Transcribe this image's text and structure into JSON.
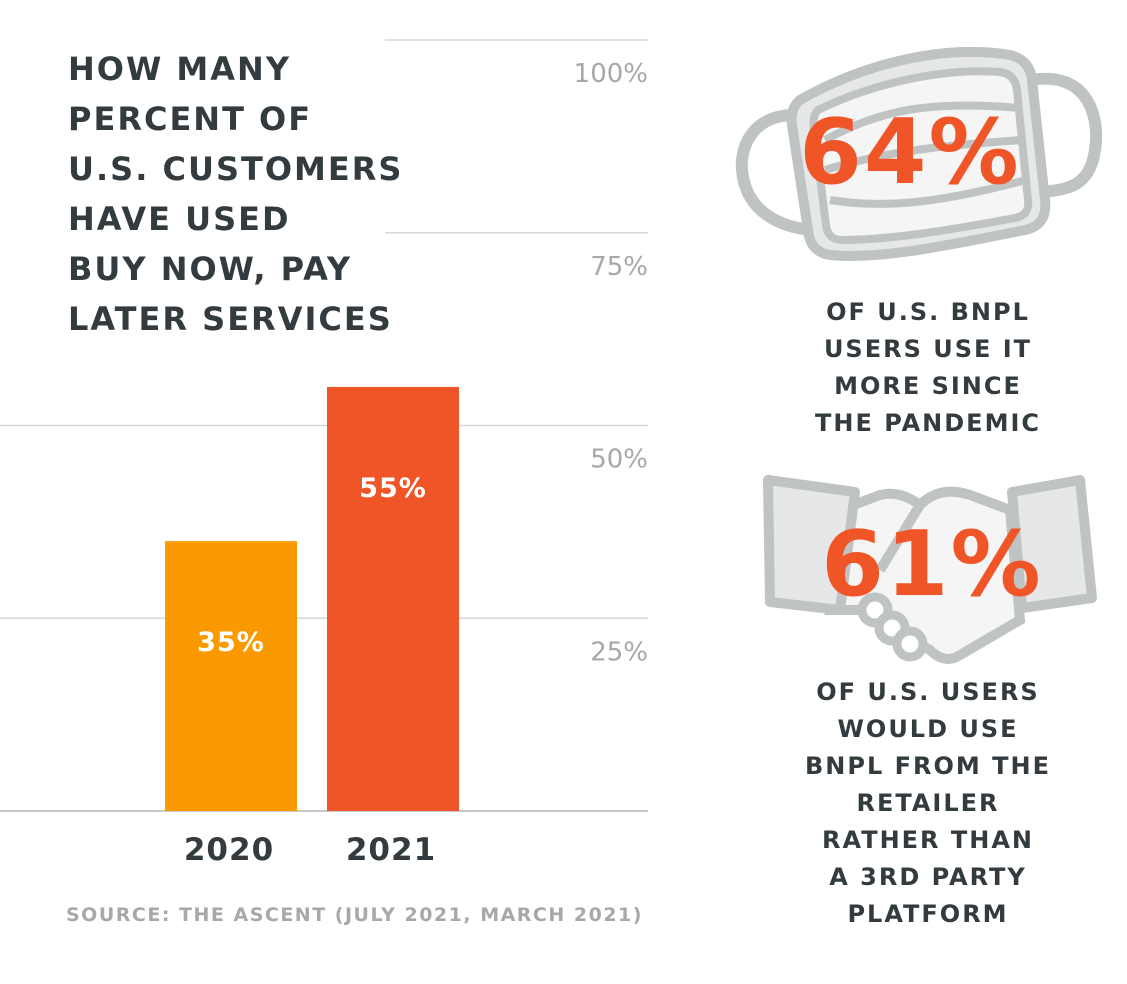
{
  "title_lines": [
    "HOW MANY",
    "PERCENT OF",
    "U.S. CUSTOMERS",
    "HAVE USED",
    "BUY NOW, PAY",
    "LATER SERVICES"
  ],
  "source": "SOURCE: THE ASCENT (JULY 2021, MARCH 2021)",
  "chart_data": {
    "type": "bar",
    "title": "HOW MANY PERCENT OF U.S. CUSTOMERS HAVE USED BUY NOW, PAY LATER SERVICES",
    "categories": [
      "2020",
      "2021"
    ],
    "values": [
      35,
      55
    ],
    "data_labels": [
      "35%",
      "55%"
    ],
    "colors": [
      "#fb9a00",
      "#f05527"
    ],
    "ylim": [
      0,
      100
    ],
    "yticks": [
      25,
      50,
      75,
      100
    ],
    "ytick_labels": [
      "25%",
      "50%",
      "75%",
      "100%"
    ],
    "yaxis_position": "right",
    "grid": true
  },
  "stats": [
    {
      "value": "64%",
      "icon": "face-mask-icon",
      "caption_lines": [
        "OF U.S. BNPL",
        "USERS USE IT",
        "MORE SINCE",
        "THE PANDEMIC"
      ]
    },
    {
      "value": "61%",
      "icon": "handshake-icon",
      "caption_lines": [
        "OF U.S. USERS",
        "WOULD USE",
        "BNPL FROM THE",
        "RETAILER",
        "RATHER THAN",
        "A 3RD PARTY",
        "PLATFORM"
      ]
    }
  ],
  "colors": {
    "accent": "#f05527",
    "text": "#333b3f",
    "muted": "#a6a8aa",
    "icon": "#c0c3c4"
  }
}
